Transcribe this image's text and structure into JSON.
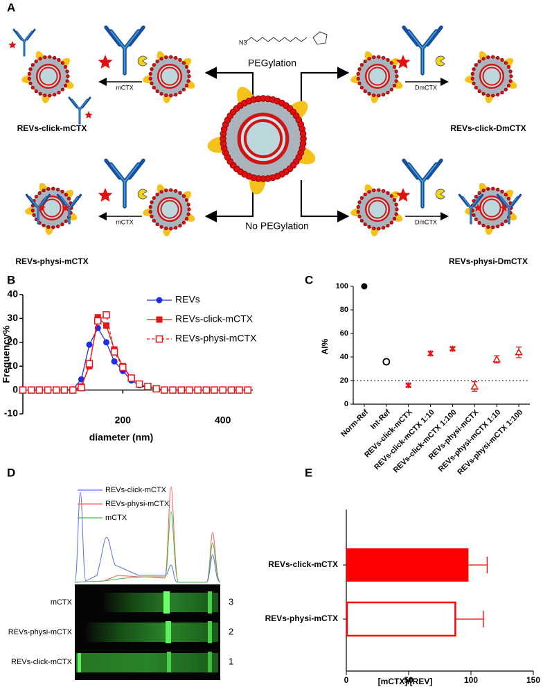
{
  "panel_labels": [
    "A",
    "B",
    "C",
    "D",
    "E"
  ],
  "diagram": {
    "pegylation": "PEGylation",
    "no_pegylation": "No PEGylation",
    "reagent": "N3",
    "arrow_labels": [
      "mCTX",
      "DmCTX",
      "mCTX",
      "DmCTX"
    ],
    "products": [
      "REVs-click-mCTX",
      "REVs-click-DmCTX",
      "REVs-physi-mCTX",
      "REVs-physi-DmCTX"
    ]
  },
  "chart_data": [
    {
      "type": "line",
      "ylabel": "Frequency%",
      "xlabel": "diameter (nm)",
      "x": [
        0,
        17,
        33,
        50,
        67,
        83,
        100,
        117,
        133,
        150,
        167,
        183,
        200,
        217,
        233,
        250,
        267,
        283,
        300,
        317,
        333,
        350,
        367,
        383,
        400,
        417,
        433,
        450
      ],
      "series": [
        {
          "name": "REVs",
          "color": "#1f2fe0",
          "marker": "circle",
          "dashed": false,
          "values": [
            0,
            0,
            0,
            0,
            0,
            0,
            0.3,
            4.5,
            19,
            26,
            20,
            12,
            8,
            4,
            2,
            1,
            0.5,
            0,
            0,
            0,
            0,
            0,
            0,
            0,
            0,
            0,
            0,
            0
          ]
        },
        {
          "name": "REVs-click-mCTX",
          "color": "#ee1111",
          "marker": "square",
          "dashed": false,
          "values": [
            0,
            0,
            0,
            0,
            0,
            0,
            0,
            1.5,
            10,
            30.5,
            27,
            17,
            10,
            5,
            2.5,
            1.5,
            0.5,
            0,
            0,
            0,
            0,
            0,
            0,
            0,
            0,
            0,
            0,
            0
          ]
        },
        {
          "name": "REVs-physi-mCTX",
          "color": "#ee1111",
          "marker": "open-square",
          "dashed": true,
          "values": [
            0,
            0,
            0,
            0,
            0,
            0,
            0,
            1,
            11,
            29,
            31.5,
            16,
            9.5,
            5,
            2.5,
            1.5,
            0.5,
            0,
            0,
            0,
            0,
            0,
            0,
            0,
            0,
            0,
            0,
            0
          ]
        }
      ],
      "xlim": [
        0,
        460
      ],
      "ylim": [
        -10,
        40
      ],
      "xticks": [
        200,
        400
      ],
      "yticks": [
        -10,
        0,
        10,
        20,
        30,
        40
      ]
    },
    {
      "type": "error-scatter",
      "ylabel": "AI%",
      "categories": [
        "Norm-Ref",
        "Int-Ref",
        "REVs-click-mCTX",
        "REVs-click-mCTX 1:10",
        "REVs-click-mCTX 1:100",
        "REVs-physi-mCTX",
        "REVs-physi-mCTX 1:10",
        "REVs-physi-mCTX 1:100"
      ],
      "values": [
        100,
        36,
        16,
        43,
        47,
        15,
        38,
        44
      ],
      "errors": [
        null,
        2,
        1,
        1.5,
        1,
        4,
        3,
        4.5
      ],
      "colors": [
        "#000000",
        "#000000",
        "#ee1111",
        "#ee1111",
        "#ee1111",
        "#ee1111",
        "#ee1111",
        "#ee1111"
      ],
      "markers": [
        "circle",
        "open-circle",
        "star",
        "star",
        "star",
        "open-triangle",
        "open-triangle",
        "open-triangle"
      ],
      "ylim": [
        0,
        100
      ],
      "yticks": [
        0,
        20,
        40,
        60,
        80,
        100
      ],
      "ref_line": 20
    },
    {
      "type": "hbar",
      "xlabel": "[mCTX]/[REV]",
      "categories": [
        "REVs-click-mCTX",
        "REVs-physi-mCTX"
      ],
      "values": [
        98,
        88
      ],
      "errors": [
        15,
        22
      ],
      "color": "#ff0000",
      "fills": [
        "solid",
        "open"
      ],
      "xlim": [
        0,
        150
      ],
      "xticks": [
        0,
        50,
        100,
        150
      ]
    }
  ],
  "gel": {
    "legend": [
      "REVs-click-mCTX",
      "REVs-physi-mCTX",
      "mCTX"
    ],
    "legend_colors": [
      "#5b6cf0",
      "#f06060",
      "#40c040"
    ],
    "lanes": [
      "mCTX",
      "REVs-physi-mCTX",
      "REVs-click-mCTX"
    ],
    "lane_numbers": [
      3,
      2,
      1
    ]
  }
}
